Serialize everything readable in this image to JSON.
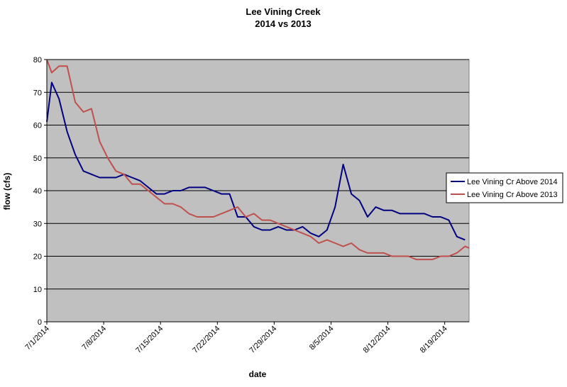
{
  "chart_data": {
    "type": "line",
    "title": "Lee Vining Creek",
    "subtitle": "2014 vs 2013",
    "xlabel": "date",
    "ylabel": "flow (cfs)",
    "ylim": [
      0,
      80
    ],
    "yticks": [
      "0",
      "10",
      "20",
      "30",
      "40",
      "50",
      "60",
      "70",
      "80"
    ],
    "xticks": [
      "7/1/2014",
      "7/8/2014",
      "7/15/2014",
      "7/22/2014",
      "7/29/2014",
      "8/5/2014",
      "8/12/2014",
      "8/19/2014"
    ],
    "x_day_ticks": [
      0,
      7,
      14,
      21,
      28,
      35,
      42,
      49
    ],
    "xlim_days": [
      0,
      52
    ],
    "grid": true,
    "legend_position": "right",
    "background_color": "#C0C0C0",
    "series": [
      {
        "name": "Lee Vining Cr Above 2014",
        "color": "#000080",
        "x_days": [
          0,
          0.6,
          1.5,
          2.5,
          3.5,
          4.5,
          5.5,
          6.5,
          7.5,
          8.5,
          9.5,
          10.5,
          11.5,
          12.5,
          13.5,
          14.5,
          15.5,
          16.5,
          17.5,
          18.5,
          19.5,
          20.5,
          21.5,
          22.5,
          23.5,
          24.5,
          25.5,
          26.5,
          27.5,
          28.5,
          29.5,
          30.5,
          31.5,
          32.5,
          33.5,
          34.5,
          35.5,
          36.5,
          37.5,
          38.5,
          39.5,
          40.5,
          41.5,
          42.5,
          43.5,
          44.5,
          45.5,
          46.5,
          47.5,
          48.5,
          49.5,
          50.5,
          51.5
        ],
        "values": [
          61,
          73,
          68,
          58,
          51,
          46,
          45,
          44,
          44,
          44,
          45,
          44,
          43,
          41,
          39,
          39,
          40,
          40,
          41,
          41,
          41,
          40,
          39,
          39,
          32,
          32,
          29,
          28,
          28,
          29,
          28,
          28,
          29,
          27,
          26,
          28,
          35,
          48,
          39,
          37,
          32,
          35,
          34,
          34,
          33,
          33,
          33,
          33,
          32,
          32,
          31,
          26,
          25
        ]
      },
      {
        "name": "Lee Vining Cr Above 2013",
        "color": "#C0504D",
        "x_days": [
          0,
          0.6,
          1.5,
          2.5,
          3.5,
          4.5,
          5.5,
          6.5,
          7.5,
          8.5,
          9.5,
          10.5,
          11.5,
          12.5,
          13.5,
          14.5,
          15.5,
          16.5,
          17.5,
          18.5,
          19.5,
          20.5,
          21.5,
          22.5,
          23.5,
          24.5,
          25.5,
          26.5,
          27.5,
          28.5,
          29.5,
          30.5,
          31.5,
          32.5,
          33.5,
          34.5,
          35.5,
          36.5,
          37.5,
          38.5,
          39.5,
          40.5,
          41.5,
          42.5,
          43.5,
          44.5,
          45.5,
          46.5,
          47.5,
          48.5,
          49.5,
          50.5,
          51.5,
          52
        ],
        "values": [
          80,
          76,
          78,
          78,
          67,
          64,
          65,
          55,
          50,
          46,
          45,
          42,
          42,
          40,
          38,
          36,
          36,
          35,
          33,
          32,
          32,
          32,
          33,
          34,
          35,
          32,
          33,
          31,
          31,
          30,
          29,
          28,
          27,
          26,
          24,
          25,
          24,
          23,
          24,
          22,
          21,
          21,
          21,
          20,
          20,
          20,
          19,
          19,
          19,
          20,
          20,
          21,
          23,
          22.5
        ]
      }
    ]
  }
}
